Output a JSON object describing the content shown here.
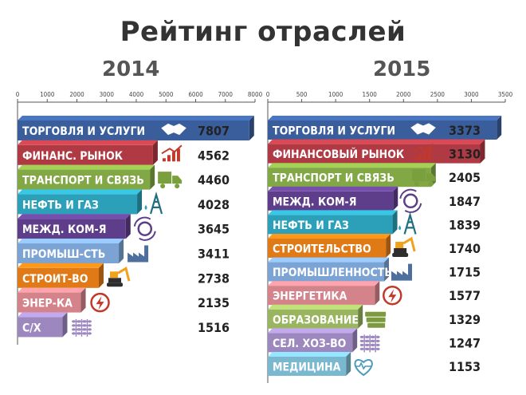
{
  "title": "Рейтинг отраслей",
  "chart_data": [
    {
      "type": "bar",
      "orientation": "horizontal",
      "title": "2014",
      "xlim": [
        0,
        8000
      ],
      "ticks": [
        "0",
        "1000",
        "2000",
        "3000",
        "4000",
        "5000",
        "6000",
        "7000",
        "8000"
      ],
      "categories": [
        "ТОРГОВЛЯ И УСЛУГИ",
        "ФИНАНС. РЫНОК",
        "ТРАНСПОРТ И СВЯЗЬ",
        "НЕФТЬ И ГАЗ",
        "МЕЖД. КОМ-Я",
        "ПРОМЫШ-СТЬ",
        "СТРОИТ-ВО",
        "ЭНЕР-КА",
        "С/Х"
      ],
      "values": [
        7807,
        4562,
        4460,
        4028,
        3645,
        3411,
        2738,
        2135,
        1516
      ],
      "value_labels": [
        "7807",
        "4562",
        "4460",
        "4028",
        "3645",
        "3411",
        "2738",
        "2135",
        "1516"
      ],
      "colors": [
        "#3a5e9c",
        "#b03a43",
        "#82a845",
        "#2ba0b8",
        "#5e3e8a",
        "#7ba3d3",
        "#e07a16",
        "#d5838a",
        "#9d87bf"
      ],
      "icons": [
        "handshake-icon",
        "rising-chart-icon",
        "truck-icon",
        "oil-tower-icon",
        "globe-exchange-icon",
        "factory-icon",
        "excavator-icon",
        "lightning-icon",
        "wheat-icon"
      ]
    },
    {
      "type": "bar",
      "orientation": "horizontal",
      "title": "2015",
      "xlim": [
        0,
        3500
      ],
      "ticks": [
        "0",
        "500",
        "1000",
        "1500",
        "2000",
        "2500",
        "3000",
        "3500"
      ],
      "categories": [
        "ТОРГОВЛЯ И УСЛУГИ",
        "ФИНАНСОВЫЙ РЫНОК",
        "ТРАНСПОРТ И СВЯЗЬ",
        "МЕЖД. КОМ-Я",
        "НЕФТЬ И ГАЗ",
        "СТРОИТЕЛЬСТВО",
        "ПРОМЫШЛЕННОСТЬ",
        "ЭНЕРГЕТИКА",
        "ОБРАЗОВАНИЕ",
        "СЕЛ. ХОЗ-ВО",
        "МЕДИЦИНА"
      ],
      "values": [
        3373,
        3130,
        2405,
        1847,
        1839,
        1740,
        1715,
        1577,
        1329,
        1247,
        1153
      ],
      "value_labels": [
        "3373",
        "3130",
        "2405",
        "1847",
        "1839",
        "1740",
        "1715",
        "1577",
        "1329",
        "1247",
        "1153"
      ],
      "colors": [
        "#3a5e9c",
        "#b03a43",
        "#82a845",
        "#5e3e8a",
        "#2ba0b8",
        "#e07a16",
        "#7ba3d3",
        "#d5838a",
        "#9ab560",
        "#9d87bf",
        "#79b8cf"
      ],
      "icons": [
        "handshake-icon",
        "rising-chart-icon",
        "truck-icon",
        "globe-exchange-icon",
        "oil-tower-icon",
        "excavator-icon",
        "factory-icon",
        "lightning-icon",
        "books-icon",
        "wheat-icon",
        "heart-pulse-icon"
      ]
    }
  ]
}
